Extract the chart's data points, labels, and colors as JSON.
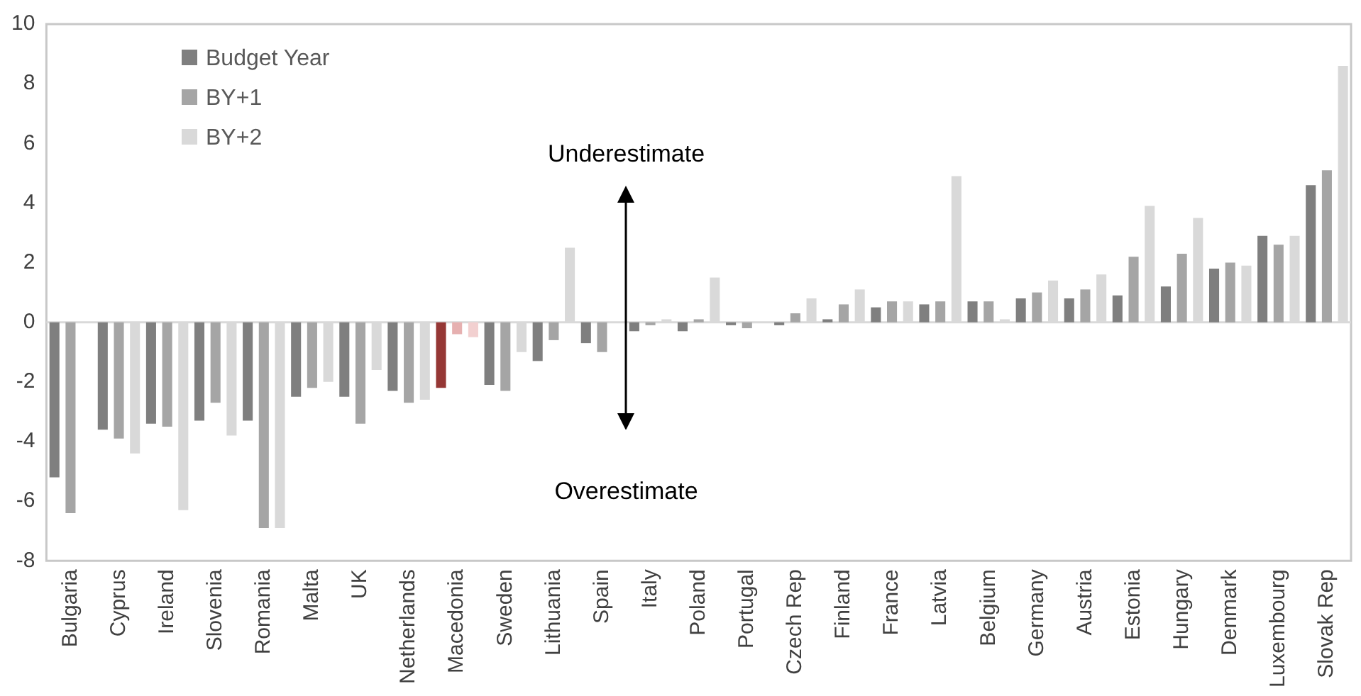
{
  "chart_data": {
    "type": "bar",
    "categories": [
      "Bulgaria",
      "Cyprus",
      "Ireland",
      "Slovenia",
      "Romania",
      "Malta",
      "UK",
      "Netherlands",
      "Macedonia",
      "Sweden",
      "Lithuania",
      "Spain",
      "Italy",
      "Poland",
      "Portugal",
      "Czech Rep",
      "Finland",
      "France",
      "Latvia",
      "Belgium",
      "Germany",
      "Austria",
      "Estonia",
      "Hungary",
      "Denmark",
      "Luxembourg",
      "Slovak Rep"
    ],
    "series": [
      {
        "name": "Budget Year",
        "color": "#7f7f7f",
        "colors": [
          "#7f7f7f",
          "#7f7f7f",
          "#7f7f7f",
          "#7f7f7f",
          "#7f7f7f",
          "#7f7f7f",
          "#7f7f7f",
          "#7f7f7f",
          "#953735",
          "#7f7f7f",
          "#7f7f7f",
          "#7f7f7f",
          "#7f7f7f",
          "#7f7f7f",
          "#7f7f7f",
          "#7f7f7f",
          "#7f7f7f",
          "#7f7f7f",
          "#7f7f7f",
          "#7f7f7f",
          "#7f7f7f",
          "#7f7f7f",
          "#7f7f7f",
          "#7f7f7f",
          "#7f7f7f",
          "#7f7f7f",
          "#7f7f7f"
        ],
        "values": [
          -5.2,
          -3.6,
          -3.4,
          -3.3,
          -3.3,
          -2.5,
          -2.5,
          -2.3,
          -2.2,
          -2.1,
          -1.3,
          -0.7,
          -0.3,
          -0.3,
          -0.1,
          -0.1,
          0.1,
          0.5,
          0.6,
          0.7,
          0.8,
          0.8,
          0.9,
          1.2,
          1.8,
          2.9,
          4.6
        ]
      },
      {
        "name": "BY+1",
        "color": "#a5a5a5",
        "colors": [
          "#a5a5a5",
          "#a5a5a5",
          "#a5a5a5",
          "#a5a5a5",
          "#a5a5a5",
          "#a5a5a5",
          "#a5a5a5",
          "#a5a5a5",
          "#e6b0b0",
          "#a5a5a5",
          "#a5a5a5",
          "#a5a5a5",
          "#a5a5a5",
          "#a5a5a5",
          "#a5a5a5",
          "#a5a5a5",
          "#a5a5a5",
          "#a5a5a5",
          "#a5a5a5",
          "#a5a5a5",
          "#a5a5a5",
          "#a5a5a5",
          "#a5a5a5",
          "#a5a5a5",
          "#a5a5a5",
          "#a5a5a5",
          "#a5a5a5"
        ],
        "values": [
          -6.4,
          -3.9,
          -3.5,
          -2.7,
          -6.9,
          -2.2,
          -3.4,
          -2.7,
          -0.4,
          -2.3,
          -0.6,
          -1.0,
          -0.1,
          0.1,
          -0.2,
          0.3,
          0.6,
          0.7,
          0.7,
          0.7,
          1.0,
          1.1,
          2.2,
          2.3,
          2.0,
          2.6,
          5.1
        ]
      },
      {
        "name": "BY+2",
        "color": "#d9d9d9",
        "colors": [
          "#d9d9d9",
          "#d9d9d9",
          "#d9d9d9",
          "#d9d9d9",
          "#d9d9d9",
          "#d9d9d9",
          "#d9d9d9",
          "#d9d9d9",
          "#f2d0d0",
          "#d9d9d9",
          "#d9d9d9",
          "#d9d9d9",
          "#d9d9d9",
          "#d9d9d9",
          "#d9d9d9",
          "#d9d9d9",
          "#d9d9d9",
          "#d9d9d9",
          "#d9d9d9",
          "#d9d9d9",
          "#d9d9d9",
          "#d9d9d9",
          "#d9d9d9",
          "#d9d9d9",
          "#d9d9d9",
          "#d9d9d9",
          "#d9d9d9"
        ],
        "values": [
          null,
          -4.4,
          -6.3,
          -3.8,
          -6.9,
          -2.0,
          -1.6,
          -2.6,
          -0.5,
          -1.0,
          2.5,
          null,
          0.1,
          1.5,
          0,
          0.8,
          1.1,
          0.7,
          4.9,
          0.1,
          1.4,
          1.6,
          3.9,
          3.5,
          1.9,
          2.9,
          8.6
        ]
      }
    ],
    "ylim": [
      -8,
      10
    ],
    "yticks": [
      -8,
      -6,
      -4,
      -2,
      0,
      2,
      4,
      6,
      8,
      10
    ],
    "legend": "top left",
    "annotations": [
      "Underestimate",
      "Overestimate"
    ]
  }
}
